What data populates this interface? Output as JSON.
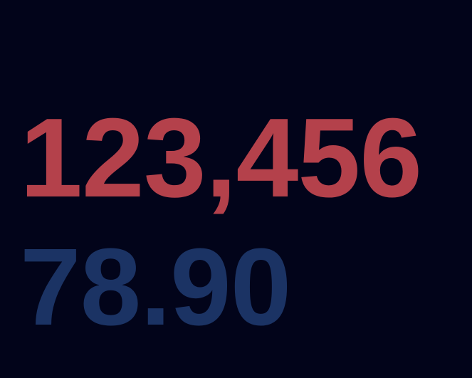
{
  "display": {
    "primary_value": "123,456",
    "secondary_value": "78.90"
  },
  "colors": {
    "background": "#02041a",
    "primary_text": "#b4414b",
    "secondary_text": "#1b3364"
  }
}
